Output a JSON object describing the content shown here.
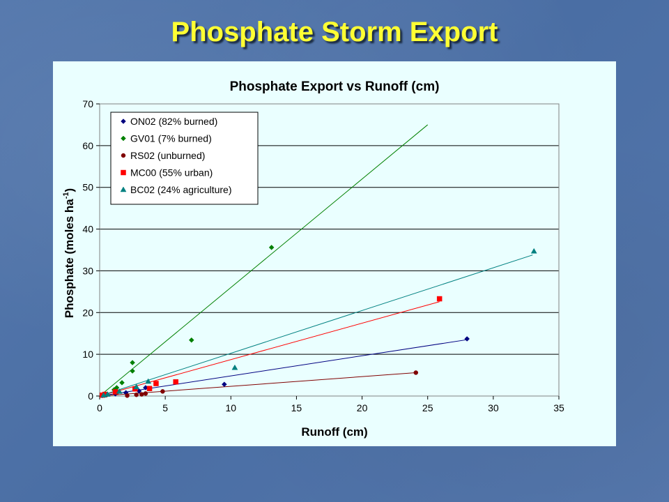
{
  "slide": {
    "title": "Phosphate Storm Export"
  },
  "chart_data": {
    "type": "scatter",
    "title": "Phosphate Export vs Runoff (cm)",
    "xlabel": "Runoff (cm)",
    "ylabel": "Phosphate (moles ha",
    "ylabel_sup": "-1",
    "ylabel_tail": ")",
    "xlim": [
      0,
      35
    ],
    "ylim": [
      0,
      70
    ],
    "xticks": [
      0,
      5,
      10,
      15,
      20,
      25,
      30,
      35
    ],
    "yticks": [
      0,
      10,
      20,
      30,
      40,
      50,
      60,
      70
    ],
    "grid": "horizontal",
    "legend_position": "top-left",
    "series": [
      {
        "name": "ON02 (82% burned)",
        "color": "#000080",
        "marker": "diamond",
        "x": [
          0.2,
          0.4,
          1.2,
          2.0,
          3.0,
          3.5,
          9.5,
          28.0
        ],
        "y": [
          0.1,
          0.2,
          0.5,
          0.8,
          1.2,
          2.0,
          2.8,
          13.7
        ],
        "trend": [
          [
            0,
            0
          ],
          [
            28.0,
            13.5
          ]
        ]
      },
      {
        "name": "GV01 (7% burned)",
        "color": "#008000",
        "marker": "diamond",
        "x": [
          0.3,
          1.1,
          1.3,
          1.7,
          2.5,
          2.5,
          7.0,
          13.1
        ],
        "y": [
          0.3,
          1.5,
          2.0,
          3.2,
          6.0,
          8.0,
          13.4,
          35.6
        ],
        "trend": [
          [
            0,
            0
          ],
          [
            25.0,
            65.0
          ]
        ]
      },
      {
        "name": "RS02 (unburned)",
        "color": "#800000",
        "marker": "circle",
        "x": [
          0.2,
          0.5,
          1.3,
          2.1,
          2.8,
          3.2,
          3.5,
          4.8,
          24.1
        ],
        "y": [
          0.1,
          0.2,
          0.8,
          0.1,
          0.3,
          0.4,
          0.6,
          1.1,
          5.6
        ],
        "trend": [
          [
            0,
            0
          ],
          [
            24.1,
            5.6
          ]
        ]
      },
      {
        "name": "MC00 (55% urban)",
        "color": "#ff0000",
        "marker": "square",
        "x": [
          0.2,
          0.4,
          1.2,
          2.7,
          3.8,
          4.3,
          5.8,
          25.9
        ],
        "y": [
          0.2,
          0.4,
          1.0,
          1.7,
          1.8,
          3.0,
          3.4,
          23.3
        ],
        "trend": [
          [
            0,
            0
          ],
          [
            25.9,
            22.6
          ]
        ]
      },
      {
        "name": "BC02 (24% agriculture)",
        "color": "#008080",
        "marker": "triangle",
        "x": [
          0.3,
          0.6,
          1.5,
          2.8,
          3.7,
          10.3,
          33.1
        ],
        "y": [
          0.2,
          0.4,
          1.1,
          2.2,
          3.5,
          6.8,
          34.7
        ],
        "trend": [
          [
            0,
            0
          ],
          [
            33.0,
            33.8
          ]
        ]
      }
    ]
  }
}
